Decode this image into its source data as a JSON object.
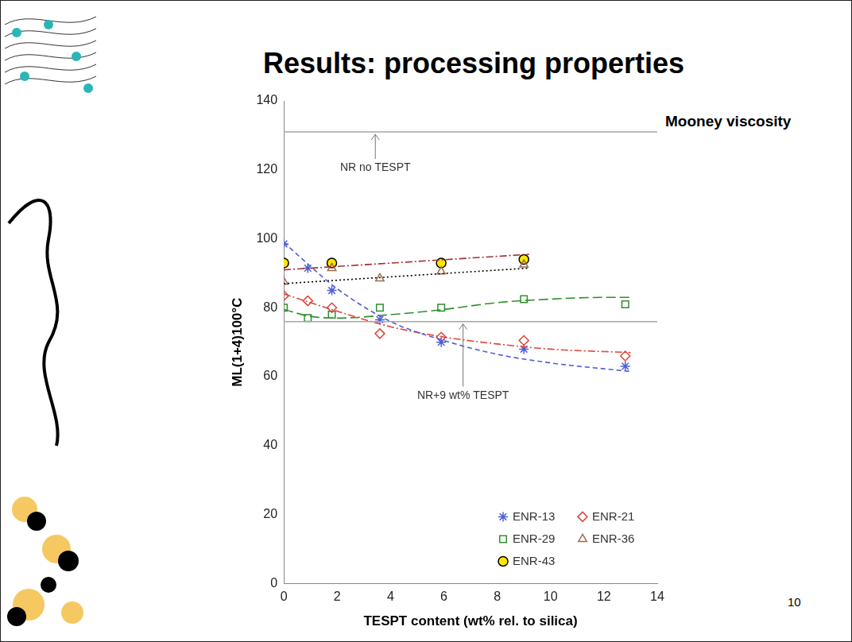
{
  "title": "Results: processing properties",
  "subtitle": "Mooney viscosity",
  "page_number": "10",
  "chart_data": {
    "type": "scatter",
    "x_label": "TESPT content (wt% rel. to silica)",
    "y_label": "ML(1+4)100°C",
    "xlim": [
      0,
      14
    ],
    "xticks": [
      0,
      2,
      4,
      6,
      8,
      10,
      12,
      14
    ],
    "ylim": [
      0,
      140
    ],
    "yticks": [
      0,
      20,
      40,
      60,
      80,
      100,
      120,
      140
    ],
    "grid": false,
    "legend": "bottom right",
    "reference_lines": [
      {
        "label": "NR no TESPT",
        "value": 131,
        "color": "#a6a6a6"
      },
      {
        "label": "NR+9 wt% TESPT",
        "value": 76,
        "color": "#a6a6a6"
      }
    ],
    "series": [
      {
        "name": "ENR-13",
        "color": "#4f5fd6",
        "marker": "asterisk",
        "x": [
          0,
          0.9,
          1.8,
          3.6,
          5.9,
          9,
          12.8
        ],
        "values": [
          98.5,
          91.5,
          85,
          76.5,
          70,
          68,
          63
        ],
        "trend": {
          "x": [
            0,
            1,
            2,
            4,
            6,
            8,
            10,
            13
          ],
          "values": [
            99,
            92,
            85.5,
            76,
            70.5,
            66.5,
            64,
            61.5
          ],
          "color": "#4f5fd6",
          "line_style": "dashed"
        }
      },
      {
        "name": "ENR-21",
        "color": "#e0453b",
        "marker": "diamond",
        "x": [
          0,
          0.9,
          1.8,
          3.6,
          5.9,
          9,
          12.8
        ],
        "values": [
          83.5,
          82,
          80,
          72.5,
          71.5,
          70.5,
          66
        ],
        "trend": {
          "x": [
            0,
            2,
            4,
            6,
            8,
            10,
            13
          ],
          "values": [
            84,
            79,
            74.5,
            71.5,
            69.5,
            68,
            67
          ],
          "color": "#e0453b",
          "line_style": "dashdot"
        }
      },
      {
        "name": "ENR-29",
        "color": "#2f8f2f",
        "marker": "square",
        "x": [
          0,
          0.9,
          1.8,
          3.6,
          5.9,
          9,
          12.8
        ],
        "values": [
          80,
          77,
          78,
          80,
          80,
          82.5,
          81
        ],
        "trend": {
          "x": [
            0,
            1,
            2,
            4,
            6,
            8,
            10,
            12,
            13
          ],
          "values": [
            79.5,
            77.5,
            77,
            78,
            79.5,
            81.5,
            82.5,
            83,
            83
          ],
          "color": "#2f8f2f",
          "line_style": "longdash"
        }
      },
      {
        "name": "ENR-36",
        "color": "#9c6b4e",
        "marker": "triangle",
        "x": [
          0,
          1.8,
          3.6,
          5.9,
          9
        ],
        "values": [
          87.5,
          91.5,
          88.5,
          90.5,
          92.5
        ],
        "trend": {
          "x": [
            0,
            9.2
          ],
          "values": [
            87,
            91.5
          ],
          "color": "#000000",
          "line_style": "dotted"
        }
      },
      {
        "name": "ENR-43",
        "color": "#ffe600",
        "marker": "circle",
        "x": [
          0,
          1.8,
          5.9,
          9
        ],
        "values": [
          93,
          93,
          93,
          94
        ],
        "trend": {
          "x": [
            0,
            9.2
          ],
          "values": [
            91,
            95.5
          ],
          "color": "#a0322d",
          "line_style": "dashdot"
        }
      }
    ]
  }
}
